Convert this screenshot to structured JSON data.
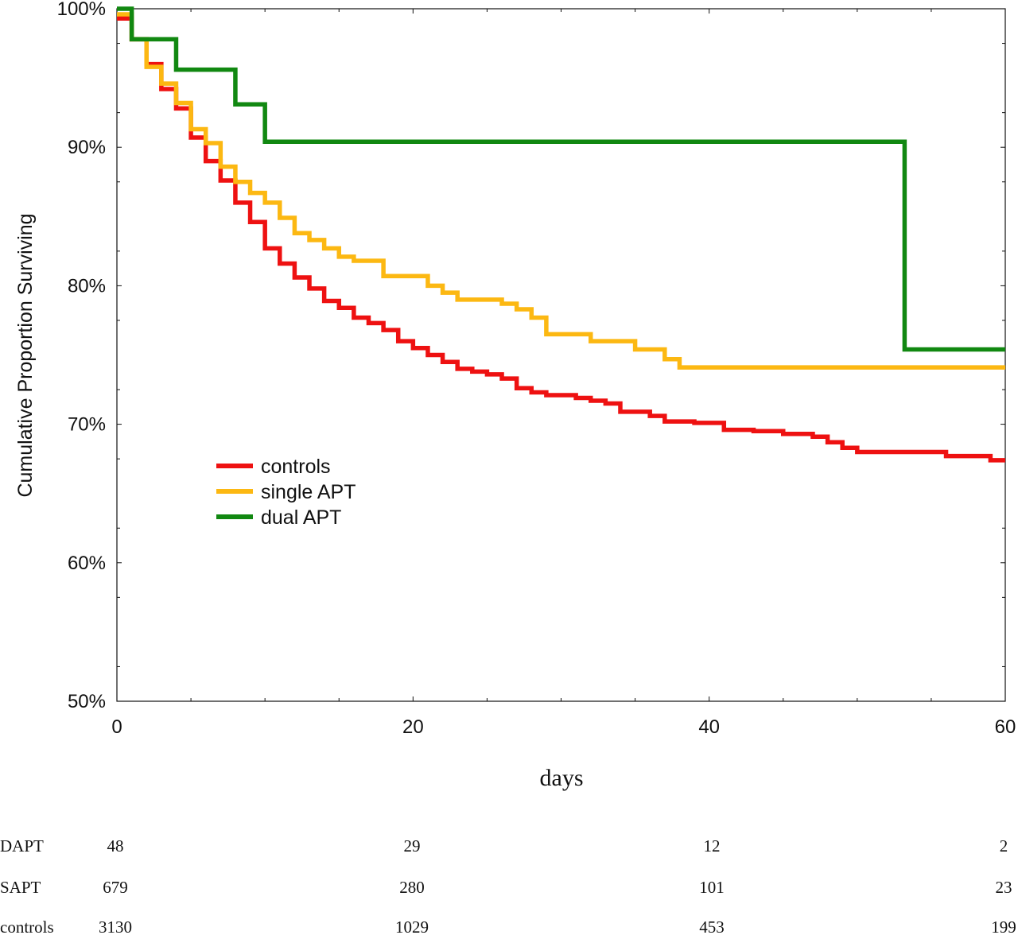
{
  "chart_data": {
    "type": "line",
    "step": true,
    "xlabel": "days",
    "ylabel": "Cumulative Proportion Surviving",
    "xlim": [
      0,
      60
    ],
    "ylim": [
      50,
      100
    ],
    "x_ticks": [
      0,
      20,
      40,
      60
    ],
    "y_ticks": [
      50,
      60,
      70,
      80,
      90,
      100
    ],
    "y_tick_labels": [
      "50%",
      "60%",
      "70%",
      "80%",
      "90%",
      "100%"
    ],
    "grid": false,
    "legend_position": "center-left",
    "series": [
      {
        "name": "controls",
        "color": "#ee1111",
        "points": [
          [
            0,
            99.3
          ],
          [
            1,
            97.8
          ],
          [
            2,
            96.0
          ],
          [
            3,
            94.2
          ],
          [
            4,
            92.8
          ],
          [
            5,
            90.7
          ],
          [
            6,
            89.0
          ],
          [
            7,
            87.6
          ],
          [
            8,
            86.0
          ],
          [
            9,
            84.6
          ],
          [
            10,
            82.7
          ],
          [
            11,
            81.6
          ],
          [
            12,
            80.6
          ],
          [
            13,
            79.8
          ],
          [
            14,
            78.9
          ],
          [
            15,
            78.4
          ],
          [
            16,
            77.7
          ],
          [
            17,
            77.3
          ],
          [
            18,
            76.8
          ],
          [
            19,
            76.0
          ],
          [
            20,
            75.5
          ],
          [
            21,
            75.0
          ],
          [
            22,
            74.5
          ],
          [
            23,
            74.0
          ],
          [
            24,
            73.8
          ],
          [
            25,
            73.6
          ],
          [
            26,
            73.3
          ],
          [
            27,
            72.6
          ],
          [
            28,
            72.3
          ],
          [
            29,
            72.1
          ],
          [
            31,
            71.9
          ],
          [
            32,
            71.7
          ],
          [
            33,
            71.5
          ],
          [
            34,
            70.9
          ],
          [
            36,
            70.6
          ],
          [
            37,
            70.2
          ],
          [
            39,
            70.1
          ],
          [
            41,
            69.6
          ],
          [
            43,
            69.5
          ],
          [
            45,
            69.3
          ],
          [
            47,
            69.1
          ],
          [
            48,
            68.7
          ],
          [
            49,
            68.3
          ],
          [
            50,
            68.0
          ],
          [
            56,
            67.7
          ],
          [
            59,
            67.4
          ],
          [
            60,
            67.4
          ]
        ]
      },
      {
        "name": "single APT",
        "color": "#fcb812",
        "points": [
          [
            0,
            99.6
          ],
          [
            1,
            97.8
          ],
          [
            2,
            95.8
          ],
          [
            3,
            94.6
          ],
          [
            4,
            93.2
          ],
          [
            5,
            91.3
          ],
          [
            6,
            90.3
          ],
          [
            7,
            88.6
          ],
          [
            8,
            87.5
          ],
          [
            9,
            86.7
          ],
          [
            10,
            86.0
          ],
          [
            11,
            84.9
          ],
          [
            12,
            83.8
          ],
          [
            13,
            83.3
          ],
          [
            14,
            82.7
          ],
          [
            15,
            82.1
          ],
          [
            16,
            81.8
          ],
          [
            18,
            80.7
          ],
          [
            21,
            80.0
          ],
          [
            22,
            79.5
          ],
          [
            23,
            79.0
          ],
          [
            26,
            78.7
          ],
          [
            27,
            78.3
          ],
          [
            28,
            77.7
          ],
          [
            29,
            76.5
          ],
          [
            32,
            76.0
          ],
          [
            35,
            75.4
          ],
          [
            37,
            74.7
          ],
          [
            38,
            74.1
          ],
          [
            60,
            74.1
          ]
        ]
      },
      {
        "name": "dual APT",
        "color": "#118811",
        "points": [
          [
            0,
            100
          ],
          [
            1,
            97.8
          ],
          [
            4,
            95.6
          ],
          [
            8,
            93.1
          ],
          [
            10,
            90.4
          ],
          [
            53.2,
            90.4
          ],
          [
            53.2,
            75.4
          ],
          [
            60,
            75.4
          ]
        ]
      }
    ],
    "risk_table": {
      "times": [
        0,
        20,
        40,
        60
      ],
      "rows": [
        {
          "label": "DAPT",
          "values": [
            "48",
            "29",
            "12",
            "2"
          ]
        },
        {
          "label": "SAPT",
          "values": [
            "679",
            "280",
            "101",
            "23"
          ]
        },
        {
          "label": "controls",
          "values": [
            "3130",
            "1029",
            "453",
            "199"
          ]
        }
      ]
    }
  }
}
